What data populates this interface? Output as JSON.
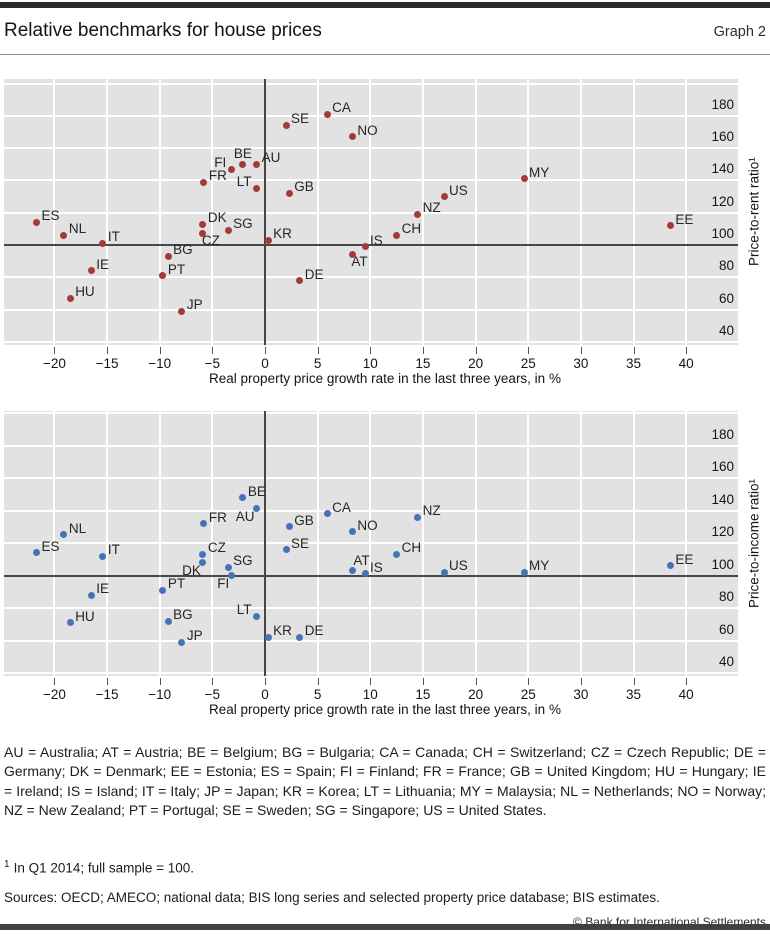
{
  "header": {
    "title": "Relative benchmarks for house prices",
    "graph_label": "Graph 2"
  },
  "axis": {
    "xtick_values": [
      -20,
      -15,
      -10,
      -5,
      0,
      5,
      10,
      15,
      20,
      25,
      30,
      35,
      40
    ],
    "xtick_labels": [
      "−20",
      "−15",
      "−10",
      "−5",
      "0",
      "5",
      "10",
      "15",
      "20",
      "25",
      "30",
      "35",
      "40"
    ],
    "ytick_values": [
      180,
      160,
      140,
      120,
      100,
      80,
      60,
      40
    ],
    "ytick_labels": [
      "180",
      "160",
      "140",
      "120",
      "100",
      "80",
      "60",
      "40"
    ],
    "grid_y_values": [
      40,
      60,
      80,
      120,
      140,
      160,
      180,
      200
    ],
    "x_reference": 0,
    "y_reference": 100
  },
  "colors": {
    "rent_dot": "#a23b38",
    "income_dot": "#4672ba",
    "plot_bg": "#e2e2e2",
    "grid": "#ffffff",
    "axis_line": "#474747"
  },
  "chart_data": [
    {
      "type": "scatter",
      "ylabel": "Price-to-rent ratio¹",
      "xlabel": "Real property price growth rate in the last three years, in %",
      "dot_color": "#a23b38",
      "xlim": [
        -25,
        45
      ],
      "ylim": [
        38,
        203
      ],
      "points": [
        {
          "code": "ES",
          "x": -21.7,
          "y": 114,
          "lp": "r"
        },
        {
          "code": "NL",
          "x": -19.1,
          "y": 106,
          "lp": "r"
        },
        {
          "code": "IT",
          "x": -15.4,
          "y": 101,
          "lp": "r"
        },
        {
          "code": "IE",
          "x": -16.5,
          "y": 84,
          "lp": "r"
        },
        {
          "code": "HU",
          "x": -18.5,
          "y": 67,
          "lp": "r"
        },
        {
          "code": "BG",
          "x": -9.2,
          "y": 93,
          "lp": "r"
        },
        {
          "code": "PT",
          "x": -9.7,
          "y": 81,
          "lp": "r"
        },
        {
          "code": "JP",
          "x": -7.9,
          "y": 59,
          "lp": "r"
        },
        {
          "code": "FR",
          "x": -5.8,
          "y": 139,
          "lp": "r"
        },
        {
          "code": "DK",
          "x": -5.9,
          "y": 113,
          "lp": "r"
        },
        {
          "code": "CZ",
          "x": -5.9,
          "y": 107,
          "lp": "br"
        },
        {
          "code": "SG",
          "x": -3.5,
          "y": 109,
          "lp": "r"
        },
        {
          "code": "FI",
          "x": -3.2,
          "y": 147,
          "lp": "l"
        },
        {
          "code": "BE",
          "x": -2.1,
          "y": 150,
          "lp": "a"
        },
        {
          "code": "AU",
          "x": -0.8,
          "y": 150,
          "lp": "r"
        },
        {
          "code": "LT",
          "x": -0.8,
          "y": 135,
          "lp": "l"
        },
        {
          "code": "KR",
          "x": 0.3,
          "y": 103,
          "lp": "r"
        },
        {
          "code": "SE",
          "x": 2.0,
          "y": 174,
          "lp": "r"
        },
        {
          "code": "GB",
          "x": 2.3,
          "y": 132,
          "lp": "r"
        },
        {
          "code": "DE",
          "x": 3.3,
          "y": 78,
          "lp": "r"
        },
        {
          "code": "CA",
          "x": 5.9,
          "y": 181,
          "lp": "r"
        },
        {
          "code": "NO",
          "x": 8.3,
          "y": 167,
          "lp": "r"
        },
        {
          "code": "AT",
          "x": 8.3,
          "y": 94,
          "lp": "br"
        },
        {
          "code": "IS",
          "x": 9.5,
          "y": 99,
          "lp": "r"
        },
        {
          "code": "CH",
          "x": 12.5,
          "y": 106,
          "lp": "r"
        },
        {
          "code": "NZ",
          "x": 14.5,
          "y": 119,
          "lp": "r"
        },
        {
          "code": "US",
          "x": 17.0,
          "y": 130,
          "lp": "r"
        },
        {
          "code": "MY",
          "x": 24.6,
          "y": 141,
          "lp": "r"
        },
        {
          "code": "EE",
          "x": 38.5,
          "y": 112,
          "lp": "r"
        }
      ]
    },
    {
      "type": "scatter",
      "ylabel": "Price-to-income ratio¹",
      "xlabel": "Real property price growth rate in the last three years, in %",
      "dot_color": "#4672ba",
      "xlim": [
        -25,
        45
      ],
      "ylim": [
        38,
        203
      ],
      "points": [
        {
          "code": "ES",
          "x": -21.7,
          "y": 114,
          "lp": "r"
        },
        {
          "code": "NL",
          "x": -19.1,
          "y": 125,
          "lp": "r"
        },
        {
          "code": "IT",
          "x": -15.4,
          "y": 112,
          "lp": "r"
        },
        {
          "code": "IE",
          "x": -16.5,
          "y": 88,
          "lp": "r"
        },
        {
          "code": "HU",
          "x": -18.5,
          "y": 71,
          "lp": "r"
        },
        {
          "code": "BG",
          "x": -9.2,
          "y": 72,
          "lp": "r"
        },
        {
          "code": "PT",
          "x": -9.7,
          "y": 91,
          "lp": "r"
        },
        {
          "code": "JP",
          "x": -7.9,
          "y": 59,
          "lp": "r"
        },
        {
          "code": "FR",
          "x": -5.8,
          "y": 132,
          "lp": "r"
        },
        {
          "code": "DK",
          "x": -5.9,
          "y": 108,
          "lp": "bl"
        },
        {
          "code": "CZ",
          "x": -5.9,
          "y": 113,
          "lp": "r"
        },
        {
          "code": "SG",
          "x": -3.5,
          "y": 105,
          "lp": "r"
        },
        {
          "code": "FI",
          "x": -3.2,
          "y": 100,
          "lp": "bl"
        },
        {
          "code": "BE",
          "x": -2.1,
          "y": 148,
          "lp": "r"
        },
        {
          "code": "AU",
          "x": -0.8,
          "y": 141,
          "lp": "bl"
        },
        {
          "code": "LT",
          "x": -0.8,
          "y": 75,
          "lp": "l"
        },
        {
          "code": "KR",
          "x": 0.3,
          "y": 62,
          "lp": "r"
        },
        {
          "code": "SE",
          "x": 2.0,
          "y": 116,
          "lp": "r"
        },
        {
          "code": "GB",
          "x": 2.3,
          "y": 130,
          "lp": "r"
        },
        {
          "code": "DE",
          "x": 3.3,
          "y": 62,
          "lp": "r"
        },
        {
          "code": "CA",
          "x": 5.9,
          "y": 138,
          "lp": "r"
        },
        {
          "code": "NO",
          "x": 8.3,
          "y": 127,
          "lp": "r"
        },
        {
          "code": "AT",
          "x": 8.3,
          "y": 103,
          "lp": "ar"
        },
        {
          "code": "IS",
          "x": 9.5,
          "y": 101,
          "lp": "r"
        },
        {
          "code": "CH",
          "x": 12.5,
          "y": 113,
          "lp": "r"
        },
        {
          "code": "NZ",
          "x": 14.5,
          "y": 136,
          "lp": "r"
        },
        {
          "code": "US",
          "x": 17.0,
          "y": 102,
          "lp": "r"
        },
        {
          "code": "MY",
          "x": 24.6,
          "y": 102,
          "lp": "r"
        },
        {
          "code": "EE",
          "x": 38.5,
          "y": 106,
          "lp": "r"
        }
      ]
    }
  ],
  "legend": "AU = Australia; AT = Austria; BE = Belgium; BG = Bulgaria; CA = Canada; CH = Switzerland; CZ = Czech Republic; DE = Germany; DK = Denmark; EE = Estonia; ES = Spain; FI = Finland; FR = France; GB = United Kingdom; HU = Hungary; IE = Ireland; IS = Island; IT = Italy; JP = Japan; KR = Korea; LT = Lithuania; MY = Malaysia; NL = Netherlands; NO = Norway; NZ = New Zealand; PT = Portugal; SE = Sweden; SG = Singapore; US = United States.",
  "footnote": {
    "marker": "1",
    "text": "In Q1 2014; full sample = 100."
  },
  "sources": "Sources: OECD; AMECO; national data; BIS long series and selected property price database; BIS estimates.",
  "copyright": "© Bank for International Settlements"
}
